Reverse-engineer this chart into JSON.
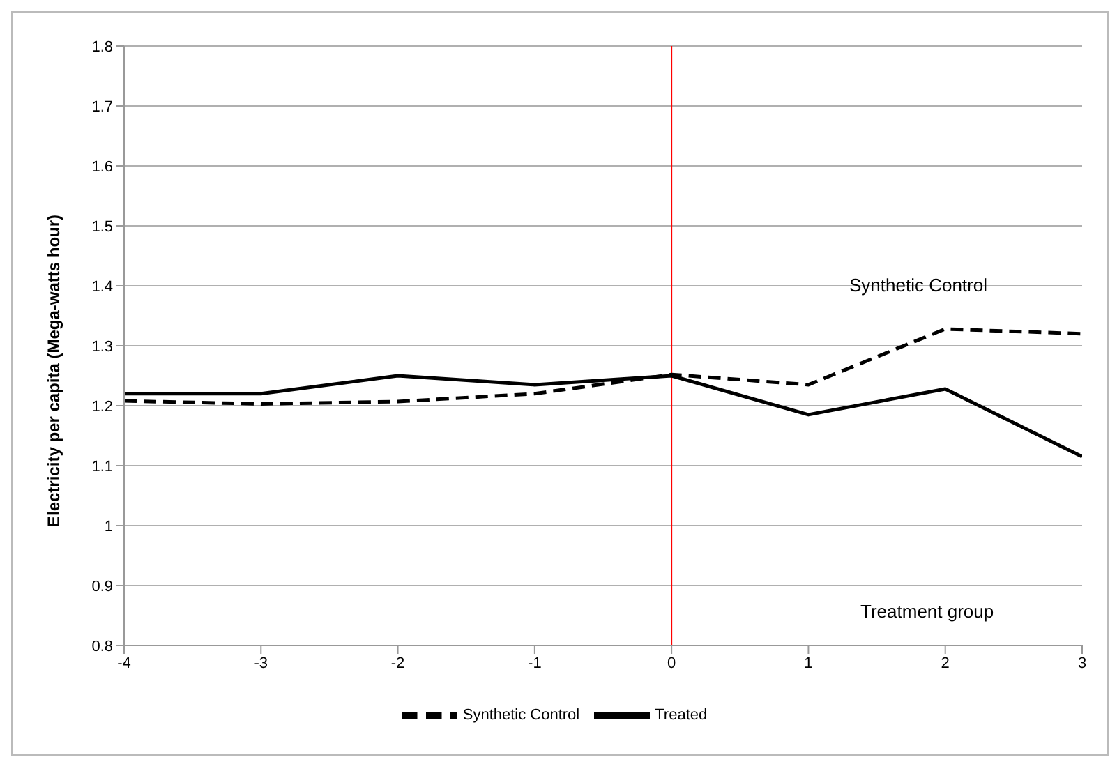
{
  "chart_data": {
    "type": "line",
    "ylabel": "Electricity per capita (Mega-watts hour)",
    "x": [
      -4,
      -3,
      -2,
      -1,
      0,
      1,
      2,
      3
    ],
    "xlim": [
      -4,
      3
    ],
    "xticks": [
      -4,
      -3,
      -2,
      -1,
      0,
      1,
      2,
      3
    ],
    "ylim": [
      0.8,
      1.8
    ],
    "yticks": [
      0.8,
      0.9,
      1,
      1.1,
      1.2,
      1.3,
      1.4,
      1.5,
      1.6,
      1.7,
      1.8
    ],
    "grid": "y",
    "legend": "bottom",
    "marker": "none",
    "series": [
      {
        "name": "Synthetic Control",
        "color": "#000000",
        "line_style": "dashed",
        "values": [
          1.208,
          1.203,
          1.207,
          1.22,
          1.252,
          1.235,
          1.328,
          1.32
        ]
      },
      {
        "name": "Treated",
        "color": "#000000",
        "line_style": "solid",
        "values": [
          1.22,
          1.22,
          1.25,
          1.235,
          1.25,
          1.185,
          1.228,
          1.115
        ]
      }
    ],
    "ref_lines": [
      {
        "axis": "x",
        "value": 0,
        "color": "#ff0000"
      }
    ],
    "annotations": [
      "Synthetic Control",
      "Treatment group"
    ]
  }
}
